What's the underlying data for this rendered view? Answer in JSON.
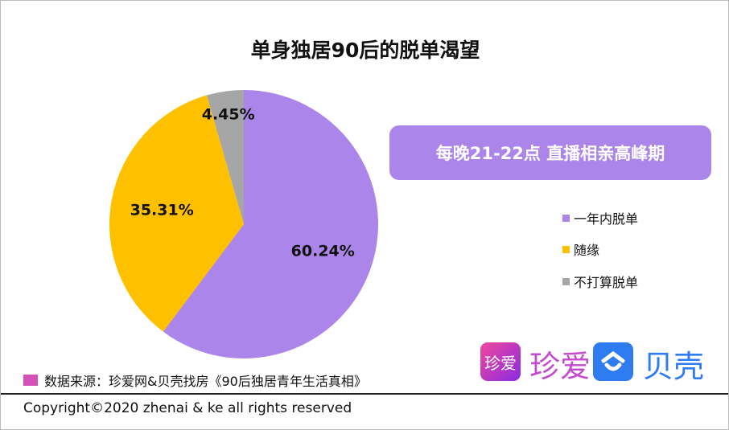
{
  "chart_data": {
    "type": "pie",
    "title": "单身独居90后的脱单渴望",
    "categories": [
      "一年内脱单",
      "随缘",
      "不打算脱单"
    ],
    "values": [
      60.24,
      35.31,
      4.45
    ],
    "labels": [
      "60.24%",
      "35.31%",
      "4.45%"
    ],
    "colors": [
      "#ab85ea",
      "#ffc000",
      "#a6a6a6"
    ],
    "legend_placement": "right"
  },
  "banner": "每晚21-22点 直播相亲高峰期",
  "source": "数据来源：珍爱网&贝壳找房《90后独居青年生活真相》",
  "copyright": "Copyright©2020 zhenai & ke all rights reserved",
  "logos": {
    "zhenai_icon": "珍爱",
    "zhenai": "珍爱",
    "ke": "贝壳"
  }
}
